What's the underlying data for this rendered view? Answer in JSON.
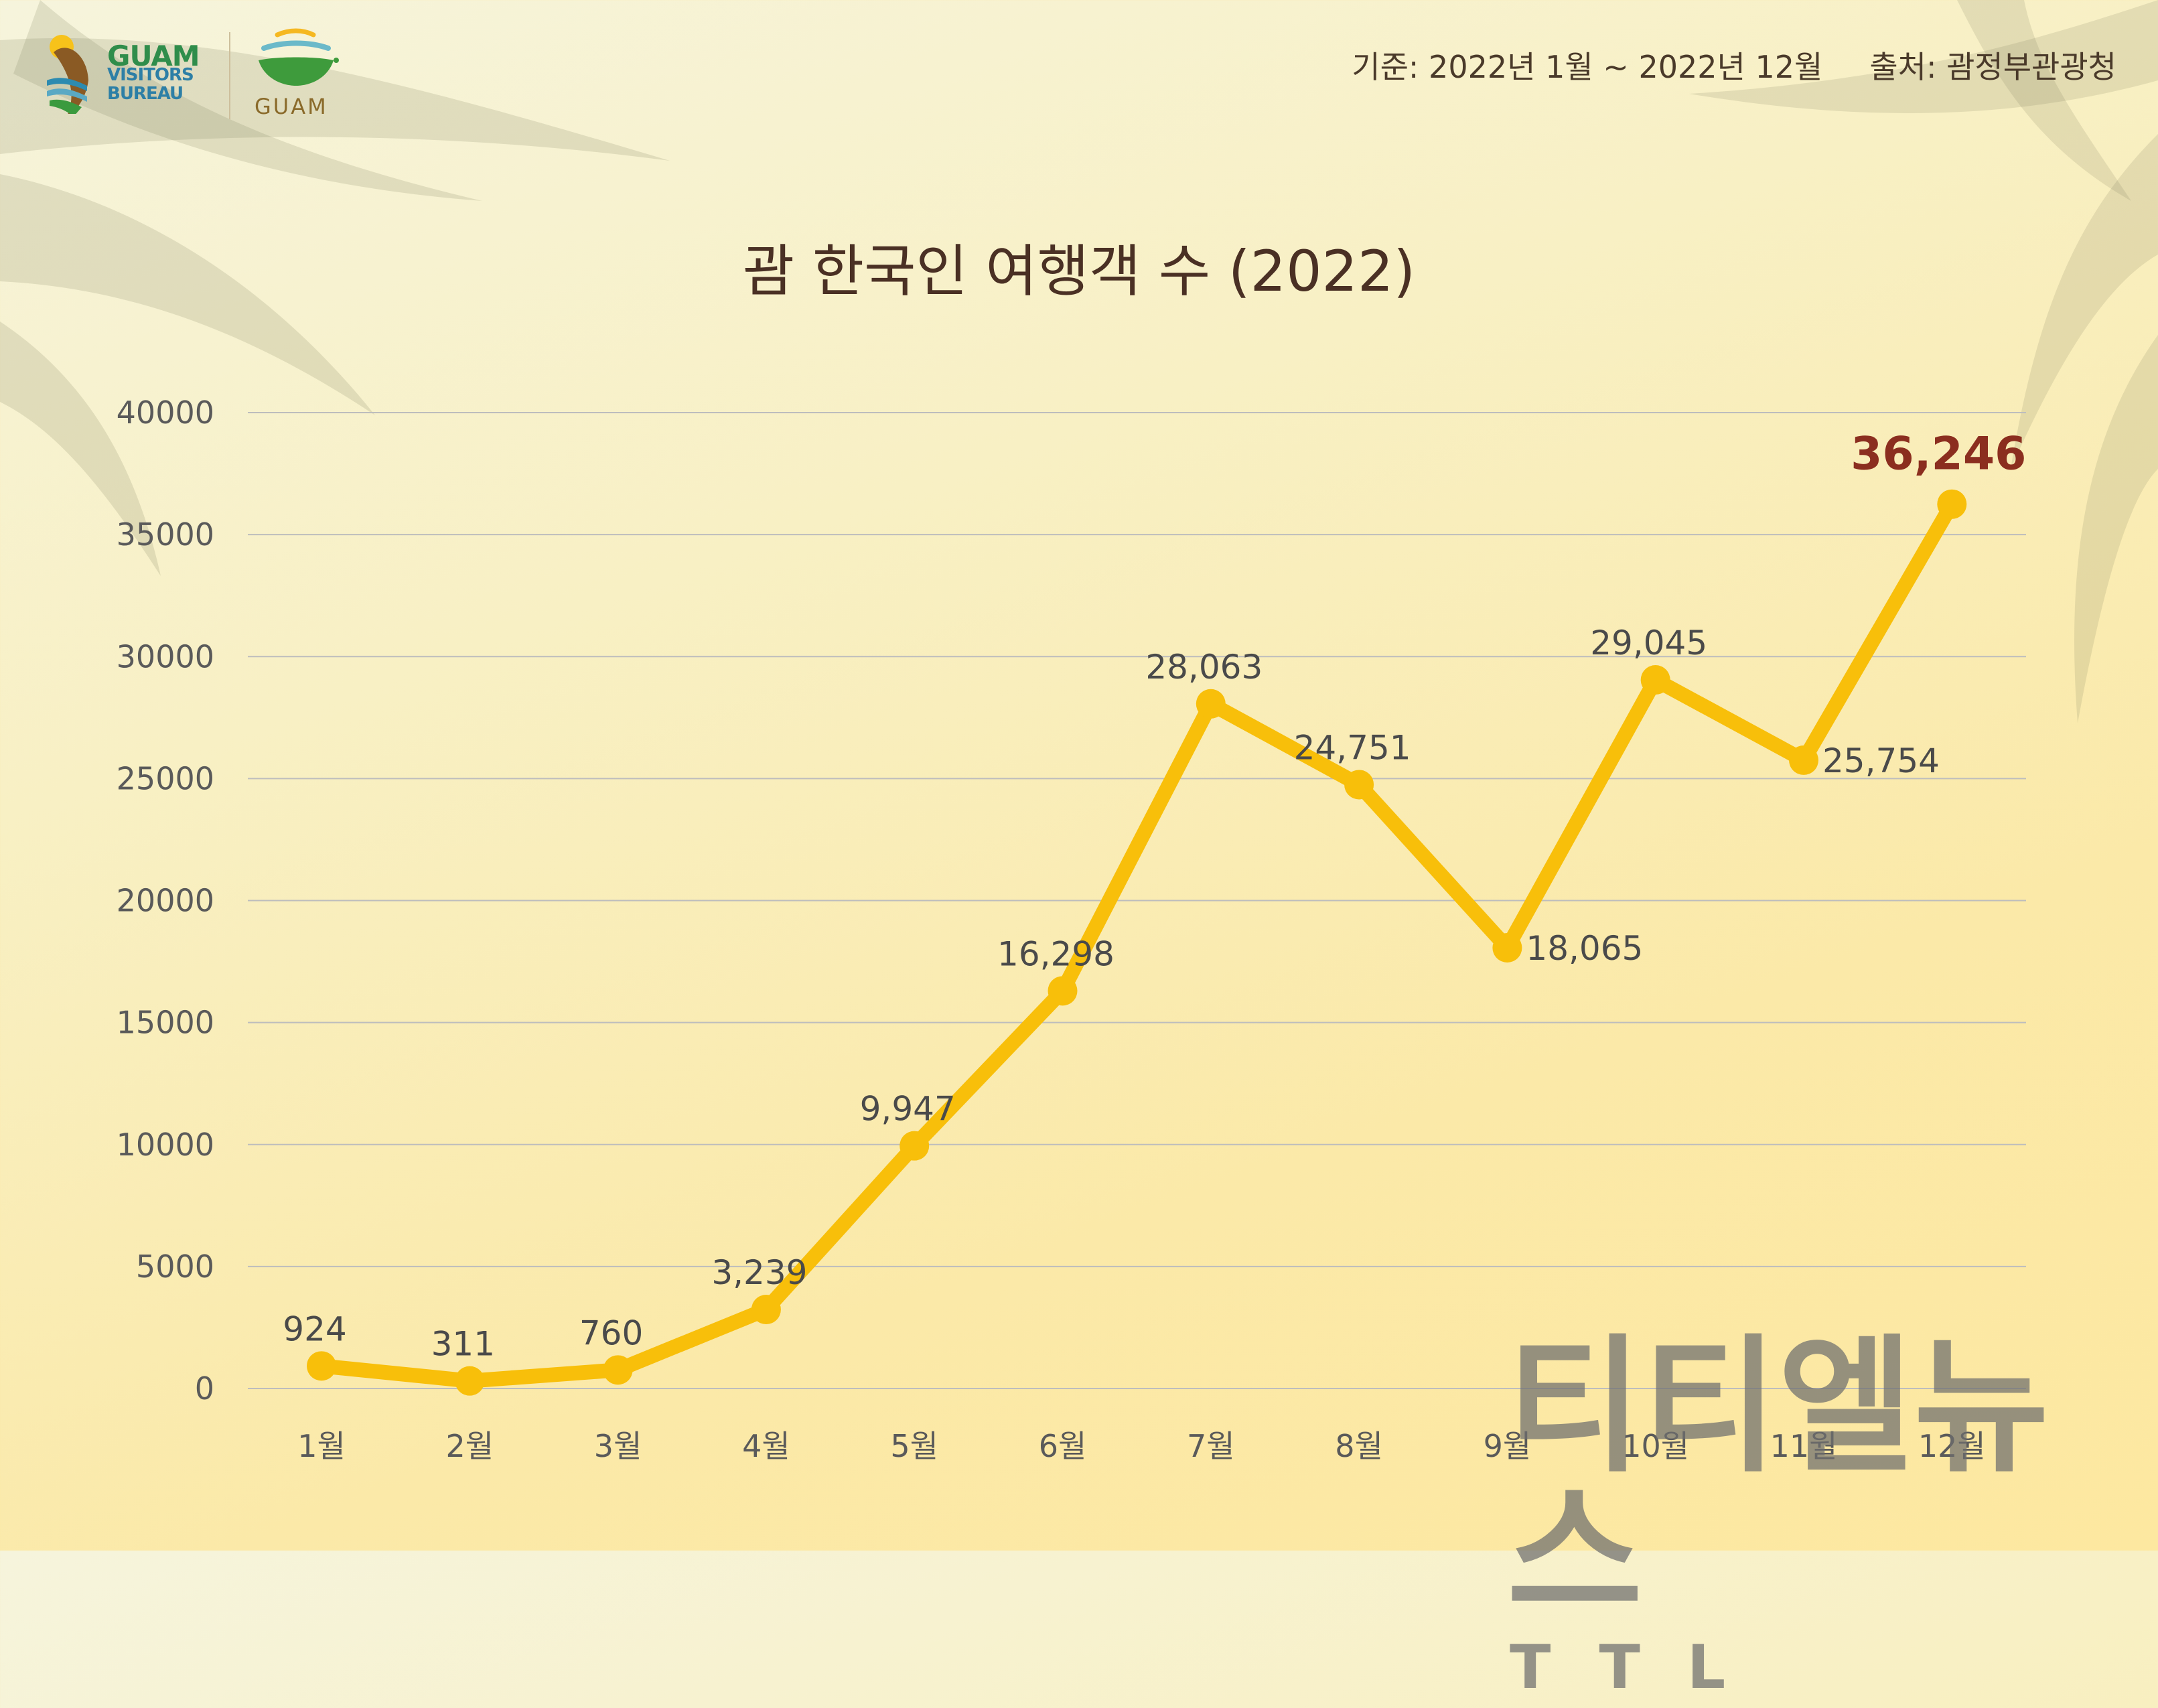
{
  "header": {
    "logo_main_line1": "GUAM",
    "logo_main_line2": "VISITORS",
    "logo_main_line3": "BUREAU",
    "logo_secondary": "GUAM",
    "period": "기준: 2022년 1월 ~ 2022년 12월",
    "source": "출처: 괌정부관광청"
  },
  "watermark": {
    "korean": "티티엘뉴스",
    "english": "TTL"
  },
  "colors": {
    "line": "#f8bf0a",
    "grid": "#bdbdbd",
    "label": "#4a4a4a",
    "axis_text": "#5a5a5a",
    "highlight": "#8b2e1f"
  },
  "chart_data": {
    "type": "line",
    "title": "괌 한국인 여행객 수 (2022)",
    "categories": [
      "1월",
      "2월",
      "3월",
      "4월",
      "5월",
      "6월",
      "7월",
      "8월",
      "9월",
      "10월",
      "11월",
      "12월"
    ],
    "values": [
      924,
      311,
      760,
      3239,
      9947,
      16298,
      28063,
      24751,
      18065,
      29045,
      25754,
      36246
    ],
    "data_labels": [
      "924",
      "311",
      "760",
      "3,239",
      "9,947",
      "16,298",
      "28,063",
      "24,751",
      "18,065",
      "29,045",
      "25,754",
      "36,246"
    ],
    "y_ticks": [
      "0",
      "5000",
      "10000",
      "15000",
      "20000",
      "25000",
      "30000",
      "35000",
      "40000"
    ],
    "ylim": [
      0,
      40000
    ],
    "grid": true,
    "highlight_last": true
  }
}
